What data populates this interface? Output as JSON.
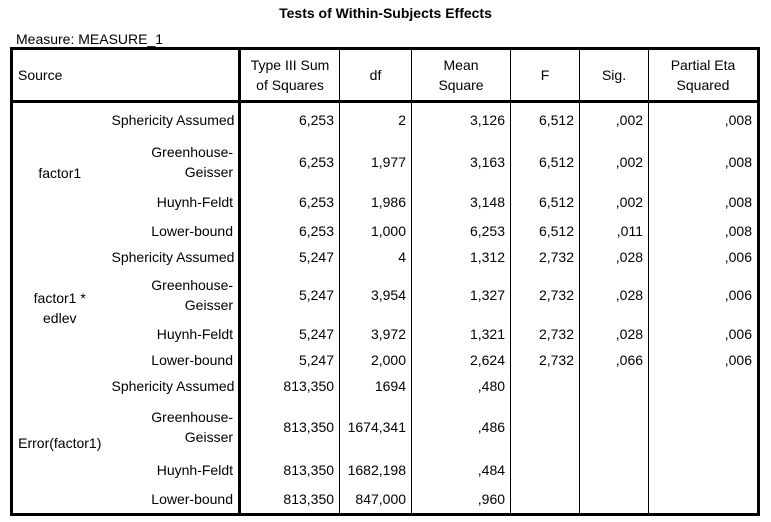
{
  "title": "Tests of Within-Subjects Effects",
  "measure": "Measure: MEASURE_1",
  "headers": {
    "source": "Source",
    "ss_line1": "Type III Sum",
    "ss_line2": "of Squares",
    "df": "df",
    "ms_line1": "Mean",
    "ms_line2": "Square",
    "f": "F",
    "sig": "Sig.",
    "eta_line1": "Partial Eta",
    "eta_line2": "Squared"
  },
  "groups": [
    {
      "label": "factor1",
      "rows": [
        {
          "correction": "Sphericity Assumed",
          "ss": "6,253",
          "df": "2",
          "ms": "3,126",
          "f": "6,512",
          "sig": ",002",
          "eta": ",008"
        },
        {
          "correction_line1": "Greenhouse-",
          "correction_line2": "Geisser",
          "ss": "6,253",
          "df": "1,977",
          "ms": "3,163",
          "f": "6,512",
          "sig": ",002",
          "eta": ",008"
        },
        {
          "correction": "Huynh-Feldt",
          "ss": "6,253",
          "df": "1,986",
          "ms": "3,148",
          "f": "6,512",
          "sig": ",002",
          "eta": ",008"
        },
        {
          "correction": "Lower-bound",
          "ss": "6,253",
          "df": "1,000",
          "ms": "6,253",
          "f": "6,512",
          "sig": ",011",
          "eta": ",008"
        }
      ]
    },
    {
      "label_line1": "factor1 *",
      "label_line2": "edlev",
      "rows": [
        {
          "correction": "Sphericity Assumed",
          "ss": "5,247",
          "df": "4",
          "ms": "1,312",
          "f": "2,732",
          "sig": ",028",
          "eta": ",006"
        },
        {
          "correction_line1": "Greenhouse-",
          "correction_line2": "Geisser",
          "ss": "5,247",
          "df": "3,954",
          "ms": "1,327",
          "f": "2,732",
          "sig": ",028",
          "eta": ",006"
        },
        {
          "correction": "Huynh-Feldt",
          "ss": "5,247",
          "df": "3,972",
          "ms": "1,321",
          "f": "2,732",
          "sig": ",028",
          "eta": ",006"
        },
        {
          "correction": "Lower-bound",
          "ss": "5,247",
          "df": "2,000",
          "ms": "2,624",
          "f": "2,732",
          "sig": ",066",
          "eta": ",006"
        }
      ]
    },
    {
      "label": "Error(factor1)",
      "rows": [
        {
          "correction": "Sphericity Assumed",
          "ss": "813,350",
          "df": "1694",
          "ms": ",480"
        },
        {
          "correction_line1": "Greenhouse-",
          "correction_line2": "Geisser",
          "ss": "813,350",
          "df": "1674,341",
          "ms": ",486"
        },
        {
          "correction": "Huynh-Feldt",
          "ss": "813,350",
          "df": "1682,198",
          "ms": ",484"
        },
        {
          "correction": "Lower-bound",
          "ss": "813,350",
          "df": "847,000",
          "ms": ",960"
        }
      ]
    }
  ]
}
